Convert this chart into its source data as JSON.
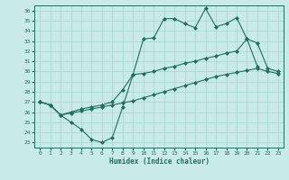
{
  "xlabel": "Humidex (Indice chaleur)",
  "xlim": [
    -0.5,
    23.5
  ],
  "ylim": [
    22.5,
    36.5
  ],
  "xticks": [
    0,
    1,
    2,
    3,
    4,
    5,
    6,
    7,
    8,
    9,
    10,
    11,
    12,
    13,
    14,
    15,
    16,
    17,
    18,
    19,
    20,
    21,
    22,
    23
  ],
  "yticks": [
    23,
    24,
    25,
    26,
    27,
    28,
    29,
    30,
    31,
    32,
    33,
    34,
    35,
    36
  ],
  "bg_color": "#c8eae8",
  "line_color": "#1f6e60",
  "grid_color": "#a8d4d0",
  "line1_x": [
    0,
    1,
    2,
    3,
    4,
    5,
    6,
    7,
    8,
    9,
    10,
    11,
    12,
    13,
    14,
    15,
    16,
    17,
    18,
    19,
    20,
    21
  ],
  "line1_y": [
    27.0,
    26.7,
    25.7,
    25.0,
    24.3,
    23.3,
    23.0,
    23.5,
    26.5,
    29.7,
    33.2,
    33.3,
    35.2,
    35.2,
    34.7,
    34.3,
    36.2,
    34.4,
    34.7,
    35.3,
    33.2,
    30.5
  ],
  "line2_x": [
    0,
    1,
    2,
    3,
    4,
    5,
    6,
    7,
    8,
    9,
    10,
    11,
    12,
    13,
    14,
    15,
    16,
    17,
    18,
    19,
    20,
    21,
    22,
    23
  ],
  "line2_y": [
    27.0,
    26.7,
    25.7,
    26.0,
    26.3,
    26.5,
    26.7,
    27.0,
    28.2,
    29.7,
    29.8,
    30.0,
    30.3,
    30.5,
    30.8,
    31.0,
    31.3,
    31.5,
    31.8,
    32.0,
    33.2,
    32.8,
    30.3,
    30.0
  ],
  "line3_x": [
    0,
    1,
    2,
    3,
    4,
    5,
    6,
    7,
    8,
    9,
    10,
    11,
    12,
    13,
    14,
    15,
    16,
    17,
    18,
    19,
    20,
    21,
    22,
    23
  ],
  "line3_y": [
    27.0,
    26.7,
    25.7,
    25.9,
    26.1,
    26.3,
    26.5,
    26.7,
    26.9,
    27.1,
    27.4,
    27.7,
    28.0,
    28.3,
    28.6,
    28.9,
    29.2,
    29.5,
    29.7,
    29.9,
    30.1,
    30.3,
    30.0,
    29.8
  ]
}
